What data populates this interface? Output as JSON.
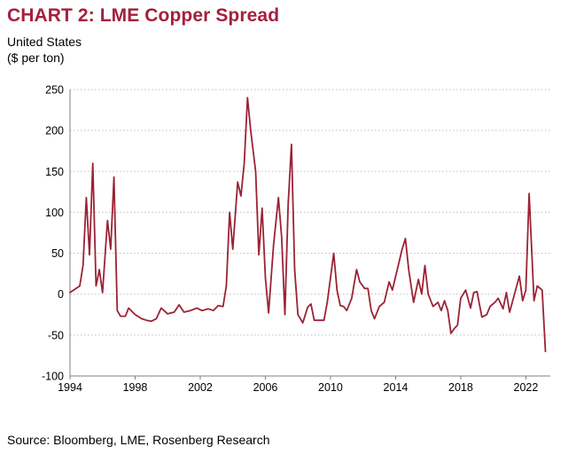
{
  "header": {
    "title": "CHART 2: LME Copper Spread",
    "subtitle_line1": "United States",
    "subtitle_line2": "($ per ton)"
  },
  "footer": {
    "source": "Source: Bloomberg, LME, Rosenberg Research"
  },
  "colors": {
    "title": "#a3203f",
    "series": "#9b2335",
    "grid": "#bdbdbd"
  },
  "chart_data": {
    "type": "line",
    "title": "CHART 2: LME Copper Spread",
    "subtitle": "United States ($ per ton)",
    "xlabel": "",
    "ylabel": "",
    "xlim": [
      1994,
      2023.5
    ],
    "ylim": [
      -100,
      250
    ],
    "x_ticks": [
      1994,
      1998,
      2002,
      2006,
      2010,
      2014,
      2018,
      2022
    ],
    "y_ticks": [
      -100,
      -50,
      0,
      50,
      100,
      150,
      200,
      250
    ],
    "grid": "horizontal dotted",
    "legend": "none",
    "series": [
      {
        "points": [
          [
            1994.0,
            2
          ],
          [
            1994.6,
            10
          ],
          [
            1994.8,
            35
          ],
          [
            1995.0,
            118
          ],
          [
            1995.2,
            48
          ],
          [
            1995.4,
            160
          ],
          [
            1995.6,
            10
          ],
          [
            1995.8,
            30
          ],
          [
            1996.0,
            2
          ],
          [
            1996.3,
            90
          ],
          [
            1996.5,
            55
          ],
          [
            1996.7,
            143
          ],
          [
            1996.9,
            -20
          ],
          [
            1997.1,
            -27
          ],
          [
            1997.4,
            -27
          ],
          [
            1997.6,
            -17
          ],
          [
            1998.0,
            -25
          ],
          [
            1998.4,
            -30
          ],
          [
            1998.7,
            -32
          ],
          [
            1999.0,
            -33
          ],
          [
            1999.3,
            -30
          ],
          [
            1999.6,
            -17
          ],
          [
            2000.0,
            -24
          ],
          [
            2000.4,
            -22
          ],
          [
            2000.7,
            -13
          ],
          [
            2001.0,
            -22
          ],
          [
            2001.4,
            -20
          ],
          [
            2001.8,
            -17
          ],
          [
            2002.1,
            -20
          ],
          [
            2002.5,
            -18
          ],
          [
            2002.8,
            -20
          ],
          [
            2003.1,
            -14
          ],
          [
            2003.4,
            -15
          ],
          [
            2003.6,
            10
          ],
          [
            2003.8,
            100
          ],
          [
            2004.0,
            55
          ],
          [
            2004.3,
            137
          ],
          [
            2004.5,
            120
          ],
          [
            2004.7,
            160
          ],
          [
            2004.9,
            240
          ],
          [
            2005.1,
            200
          ],
          [
            2005.4,
            150
          ],
          [
            2005.6,
            48
          ],
          [
            2005.8,
            105
          ],
          [
            2006.0,
            20
          ],
          [
            2006.2,
            -23
          ],
          [
            2006.5,
            60
          ],
          [
            2006.8,
            118
          ],
          [
            2007.0,
            70
          ],
          [
            2007.2,
            -25
          ],
          [
            2007.4,
            110
          ],
          [
            2007.6,
            183
          ],
          [
            2007.8,
            30
          ],
          [
            2008.0,
            -25
          ],
          [
            2008.3,
            -35
          ],
          [
            2008.6,
            -16
          ],
          [
            2008.8,
            -12
          ],
          [
            2009.0,
            -32
          ],
          [
            2009.3,
            -32
          ],
          [
            2009.6,
            -32
          ],
          [
            2009.8,
            -10
          ],
          [
            2010.2,
            50
          ],
          [
            2010.4,
            5
          ],
          [
            2010.6,
            -14
          ],
          [
            2010.8,
            -15
          ],
          [
            2011.0,
            -20
          ],
          [
            2011.3,
            -5
          ],
          [
            2011.6,
            30
          ],
          [
            2011.8,
            15
          ],
          [
            2012.1,
            7
          ],
          [
            2012.3,
            7
          ],
          [
            2012.5,
            -20
          ],
          [
            2012.7,
            -30
          ],
          [
            2013.0,
            -15
          ],
          [
            2013.3,
            -10
          ],
          [
            2013.6,
            15
          ],
          [
            2013.8,
            5
          ],
          [
            2014.1,
            30
          ],
          [
            2014.4,
            55
          ],
          [
            2014.6,
            68
          ],
          [
            2014.8,
            30
          ],
          [
            2015.1,
            -10
          ],
          [
            2015.4,
            18
          ],
          [
            2015.6,
            0
          ],
          [
            2015.8,
            35
          ],
          [
            2016.0,
            0
          ],
          [
            2016.3,
            -15
          ],
          [
            2016.6,
            -10
          ],
          [
            2016.8,
            -20
          ],
          [
            2017.0,
            -8
          ],
          [
            2017.2,
            -20
          ],
          [
            2017.4,
            -48
          ],
          [
            2017.6,
            -42
          ],
          [
            2017.8,
            -38
          ],
          [
            2018.0,
            -5
          ],
          [
            2018.3,
            5
          ],
          [
            2018.6,
            -17
          ],
          [
            2018.8,
            2
          ],
          [
            2019.0,
            3
          ],
          [
            2019.3,
            -28
          ],
          [
            2019.6,
            -25
          ],
          [
            2019.8,
            -15
          ],
          [
            2020.1,
            -10
          ],
          [
            2020.3,
            -5
          ],
          [
            2020.6,
            -18
          ],
          [
            2020.8,
            2
          ],
          [
            2021.0,
            -22
          ],
          [
            2021.3,
            0
          ],
          [
            2021.6,
            22
          ],
          [
            2021.8,
            -8
          ],
          [
            2022.0,
            5
          ],
          [
            2022.2,
            123
          ],
          [
            2022.5,
            -8
          ],
          [
            2022.7,
            10
          ],
          [
            2023.0,
            5
          ],
          [
            2023.2,
            -70
          ]
        ]
      }
    ]
  }
}
